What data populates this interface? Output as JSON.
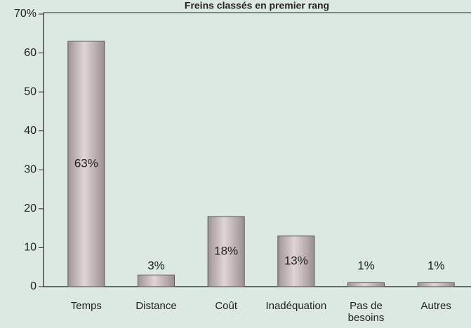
{
  "chart_data": {
    "type": "bar",
    "title": "Freins classés en premier rang",
    "categories": [
      "Temps",
      "Distance",
      "Coût",
      "Inadéquation",
      "Pas de besoins",
      "Autres"
    ],
    "values": [
      63,
      3,
      18,
      13,
      1,
      1
    ],
    "value_labels": [
      "63%",
      "3%",
      "18%",
      "13%",
      "1%",
      "1%"
    ],
    "color": "#c9bcbc",
    "ylim": [
      0,
      70
    ],
    "yticks": [
      0,
      10,
      20,
      30,
      40,
      50,
      60,
      {
        "value": 70,
        "label": "70%"
      }
    ],
    "grid": false
  }
}
